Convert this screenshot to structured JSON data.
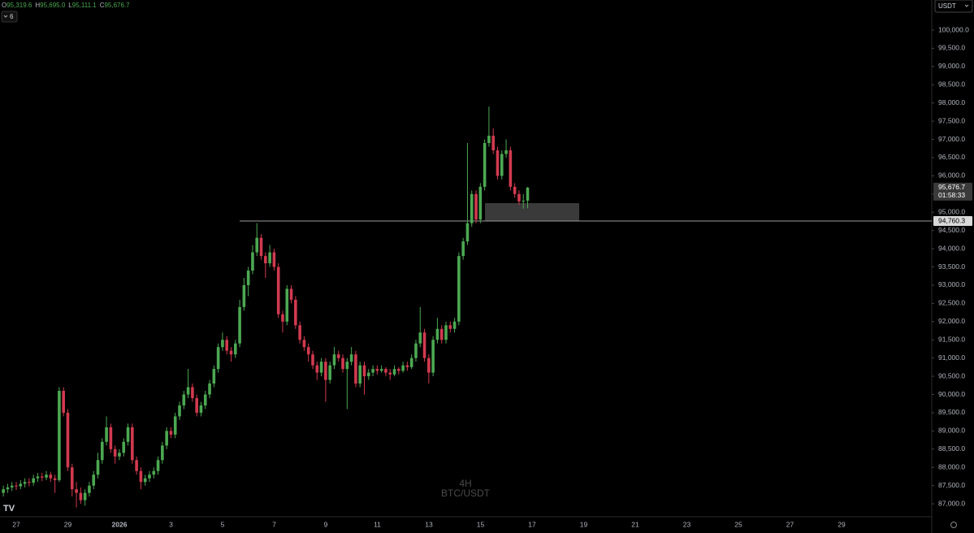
{
  "chart_data": {
    "type": "candlestick",
    "symbol": "BTC/USDT",
    "interval": "4H",
    "currency": "USDT",
    "indicator_count": "6",
    "ohlc": [
      {
        "key": "O",
        "value": "95,319.6"
      },
      {
        "key": "H",
        "value": "95,695.0"
      },
      {
        "key": "L",
        "value": "95,111.1"
      },
      {
        "key": "C",
        "value": "95,676.7"
      }
    ],
    "up_color": "#4ca852",
    "down_color": "#d13a4f",
    "x_labels": [
      "27",
      "29",
      "2026",
      "3",
      "5",
      "7",
      "9",
      "11",
      "13",
      "15",
      "17",
      "19",
      "21",
      "23",
      "25",
      "27",
      "29"
    ],
    "ylim": [
      86645,
      100825
    ],
    "yticks": [
      {
        "value": 87000,
        "label": "87,000.0"
      },
      {
        "value": 87500,
        "label": "87,500.0"
      },
      {
        "value": 88000,
        "label": "88,000.0"
      },
      {
        "value": 88500,
        "label": "88,500.0"
      },
      {
        "value": 89000,
        "label": "89,000.0"
      },
      {
        "value": 89500,
        "label": "89,500.0"
      },
      {
        "value": 90000,
        "label": "90,000.0"
      },
      {
        "value": 90500,
        "label": "90,500.0"
      },
      {
        "value": 91000,
        "label": "91,000.0"
      },
      {
        "value": 91500,
        "label": "91,500.0"
      },
      {
        "value": 92000,
        "label": "92,000.0"
      },
      {
        "value": 92500,
        "label": "92,500.0"
      },
      {
        "value": 93000,
        "label": "93,000.0"
      },
      {
        "value": 93500,
        "label": "93,500.0"
      },
      {
        "value": 94000,
        "label": "94,000.0"
      },
      {
        "value": 94500,
        "label": "94,500.0"
      },
      {
        "value": 95000,
        "label": "95,000.0"
      },
      {
        "value": 95500,
        "label": "95,500.0"
      },
      {
        "value": 96000,
        "label": "96,000.0"
      },
      {
        "value": 96500,
        "label": "96,500.0"
      },
      {
        "value": 97000,
        "label": "97,000.0"
      },
      {
        "value": 97500,
        "label": "97,500.0"
      },
      {
        "value": 98000,
        "label": "98,000.0"
      },
      {
        "value": 98500,
        "label": "98,500.0"
      },
      {
        "value": 99000,
        "label": "99,000.0"
      },
      {
        "value": 99500,
        "label": "99,500.0"
      },
      {
        "value": 100000,
        "label": "100,000.0"
      }
    ],
    "last_price": {
      "value": 95676.7,
      "label": "95,676.7"
    },
    "countdown": "01:58:33",
    "level": {
      "value": 94760.3,
      "label": "94,760.3"
    },
    "candles": [
      [
        87300,
        87500,
        87200,
        87400
      ],
      [
        87400,
        87550,
        87300,
        87450
      ],
      [
        87450,
        87600,
        87350,
        87500
      ],
      [
        87500,
        87600,
        87380,
        87480
      ],
      [
        87480,
        87650,
        87400,
        87550
      ],
      [
        87550,
        87700,
        87450,
        87600
      ],
      [
        87600,
        87700,
        87480,
        87580
      ],
      [
        87580,
        87800,
        87500,
        87700
      ],
      [
        87700,
        87850,
        87600,
        87750
      ],
      [
        87750,
        87850,
        87620,
        87720
      ],
      [
        87720,
        87900,
        87650,
        87800
      ],
      [
        87800,
        87880,
        87600,
        87700
      ],
      [
        87700,
        87800,
        87300,
        87650
      ],
      [
        87650,
        90200,
        87600,
        90100
      ],
      [
        90100,
        90200,
        89400,
        89500
      ],
      [
        89500,
        89600,
        87900,
        88000
      ],
      [
        88000,
        88100,
        87200,
        87400
      ],
      [
        87400,
        87600,
        86900,
        87300
      ],
      [
        87300,
        87450,
        87000,
        87100
      ],
      [
        87100,
        87400,
        86950,
        87300
      ],
      [
        87300,
        87600,
        87200,
        87500
      ],
      [
        87500,
        87900,
        87400,
        87800
      ],
      [
        87800,
        88400,
        87700,
        88200
      ],
      [
        88200,
        88800,
        88100,
        88700
      ],
      [
        88700,
        89400,
        88600,
        89100
      ],
      [
        89100,
        89200,
        88400,
        88500
      ],
      [
        88500,
        88600,
        88100,
        88300
      ],
      [
        88300,
        88500,
        88200,
        88400
      ],
      [
        88400,
        88800,
        88300,
        88700
      ],
      [
        88700,
        89200,
        88600,
        89100
      ],
      [
        89100,
        89200,
        88100,
        88200
      ],
      [
        88200,
        88300,
        87800,
        87900
      ],
      [
        87900,
        88000,
        87400,
        87600
      ],
      [
        87600,
        87800,
        87500,
        87700
      ],
      [
        87700,
        87900,
        87600,
        87800
      ],
      [
        87800,
        88000,
        87700,
        87900
      ],
      [
        87900,
        88300,
        87800,
        88200
      ],
      [
        88200,
        88700,
        88100,
        88600
      ],
      [
        88600,
        89100,
        88500,
        89000
      ],
      [
        89000,
        89100,
        88800,
        88900
      ],
      [
        88900,
        89500,
        88800,
        89400
      ],
      [
        89400,
        89800,
        89300,
        89700
      ],
      [
        89700,
        90100,
        89600,
        90000
      ],
      [
        90000,
        90700,
        89900,
        90200
      ],
      [
        90200,
        90300,
        89800,
        89900
      ],
      [
        89900,
        90000,
        89400,
        89500
      ],
      [
        89500,
        89800,
        89400,
        89700
      ],
      [
        89700,
        90100,
        89600,
        90000
      ],
      [
        90000,
        90400,
        89900,
        90300
      ],
      [
        90300,
        90800,
        90200,
        90700
      ],
      [
        90700,
        91400,
        90600,
        91300
      ],
      [
        91300,
        91700,
        91200,
        91500
      ],
      [
        91500,
        91600,
        91100,
        91200
      ],
      [
        91200,
        91300,
        90900,
        91100
      ],
      [
        91100,
        91500,
        91000,
        91400
      ],
      [
        91400,
        92600,
        91300,
        92400
      ],
      [
        92400,
        93200,
        92300,
        93000
      ],
      [
        93000,
        93500,
        92700,
        93400
      ],
      [
        93400,
        94100,
        93300,
        93900
      ],
      [
        93900,
        94700,
        93800,
        94300
      ],
      [
        94300,
        94400,
        93700,
        93800
      ],
      [
        93800,
        93900,
        93200,
        93600
      ],
      [
        93600,
        94100,
        93500,
        93900
      ],
      [
        93900,
        94000,
        93400,
        93500
      ],
      [
        93500,
        93600,
        92100,
        92200
      ],
      [
        92200,
        92300,
        91700,
        92000
      ],
      [
        92000,
        93000,
        91900,
        92900
      ],
      [
        92900,
        93000,
        92500,
        92600
      ],
      [
        92600,
        92700,
        91800,
        91900
      ],
      [
        91900,
        92000,
        91400,
        91500
      ],
      [
        91500,
        91600,
        91200,
        91300
      ],
      [
        91300,
        91400,
        90900,
        91100
      ],
      [
        91100,
        91200,
        90700,
        90800
      ],
      [
        90800,
        90900,
        90400,
        90600
      ],
      [
        90600,
        91000,
        90500,
        90900
      ],
      [
        90900,
        91000,
        89800,
        90400
      ],
      [
        90400,
        90900,
        90300,
        90800
      ],
      [
        90800,
        91300,
        90700,
        91100
      ],
      [
        91100,
        91200,
        90900,
        91000
      ],
      [
        91000,
        91100,
        90600,
        90700
      ],
      [
        90700,
        91000,
        89600,
        90900
      ],
      [
        90900,
        91300,
        90800,
        91100
      ],
      [
        91100,
        91200,
        90200,
        90300
      ],
      [
        90300,
        90900,
        90200,
        90800
      ],
      [
        90800,
        90900,
        90000,
        90500
      ],
      [
        90500,
        90700,
        90400,
        90600
      ],
      [
        90600,
        90800,
        90500,
        90700
      ],
      [
        90700,
        90800,
        90550,
        90650
      ],
      [
        90650,
        90800,
        90600,
        90700
      ],
      [
        90700,
        90750,
        90500,
        90600
      ],
      [
        90600,
        90700,
        90400,
        90550
      ],
      [
        90550,
        90800,
        90500,
        90700
      ],
      [
        90700,
        90750,
        90550,
        90650
      ],
      [
        90650,
        90900,
        90600,
        90800
      ],
      [
        90800,
        90900,
        90650,
        90750
      ],
      [
        90750,
        91100,
        90700,
        91000
      ],
      [
        91000,
        91500,
        90900,
        91400
      ],
      [
        91400,
        92400,
        91300,
        91700
      ],
      [
        91700,
        91800,
        90900,
        91000
      ],
      [
        91000,
        91100,
        90300,
        90600
      ],
      [
        90600,
        91600,
        90500,
        91500
      ],
      [
        91500,
        92100,
        91400,
        91800
      ],
      [
        91800,
        91900,
        91400,
        91500
      ],
      [
        91500,
        92000,
        91400,
        91900
      ],
      [
        91900,
        92000,
        91700,
        91800
      ],
      [
        91800,
        92100,
        91700,
        92000
      ],
      [
        92000,
        93900,
        91900,
        93800
      ],
      [
        93800,
        94300,
        93700,
        94200
      ],
      [
        94200,
        96900,
        94100,
        94700
      ],
      [
        94700,
        95600,
        94600,
        95500
      ],
      [
        95500,
        95600,
        94700,
        94800
      ],
      [
        94800,
        95800,
        94700,
        95700
      ],
      [
        95700,
        97000,
        95600,
        96900
      ],
      [
        96900,
        97900,
        96800,
        97100
      ],
      [
        97100,
        97300,
        96600,
        96700
      ],
      [
        96700,
        96800,
        95900,
        96000
      ],
      [
        96000,
        96700,
        95900,
        96600
      ],
      [
        96600,
        97000,
        96500,
        96700
      ],
      [
        96700,
        96800,
        95600,
        95700
      ],
      [
        95700,
        95800,
        95400,
        95500
      ],
      [
        95500,
        95600,
        95200,
        95300
      ],
      [
        95300,
        95500,
        95100,
        95319.6
      ],
      [
        95319.6,
        95695,
        95111.1,
        95676.7
      ]
    ]
  }
}
